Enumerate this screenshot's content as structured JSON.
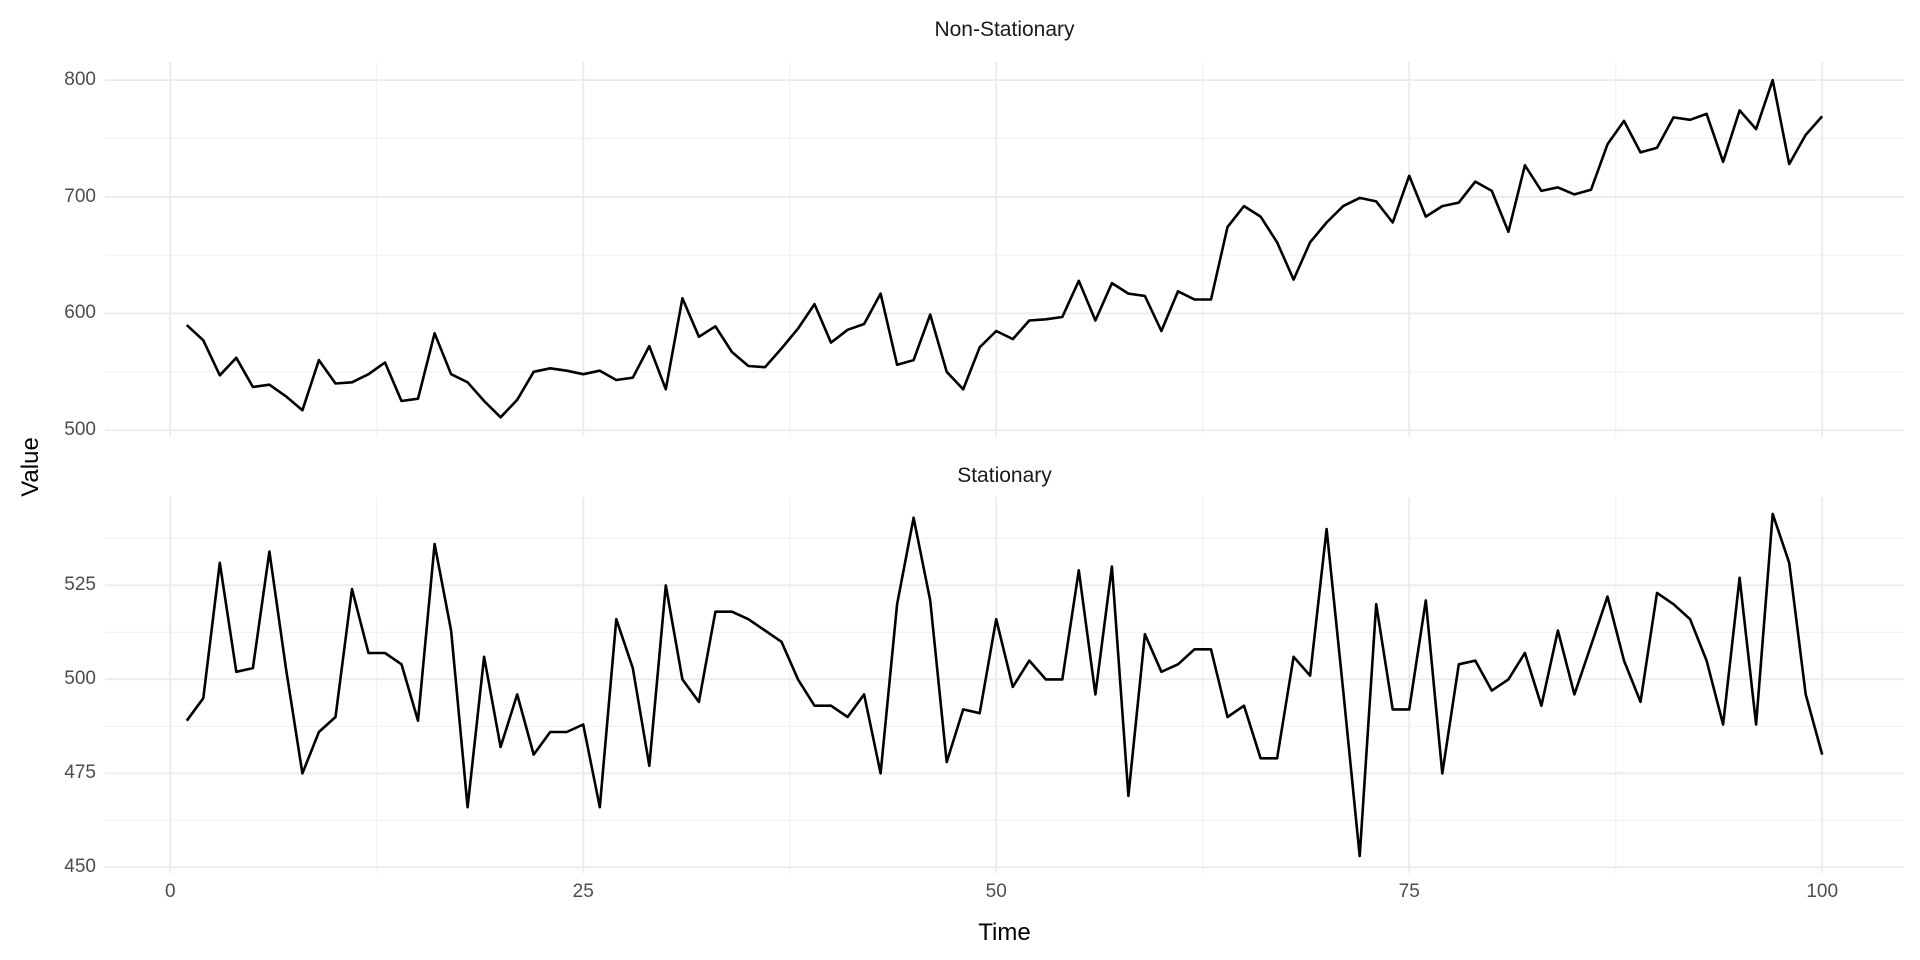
{
  "figure": {
    "y_axis_title": "Value",
    "x_axis_title": "Time",
    "background_color": "#ffffff",
    "line_color": "#000000",
    "grid_major_color": "#ebebeb",
    "grid_minor_color": "#f1f1f1",
    "tick_label_color": "#4d4d4d",
    "facet_title_color": "#1a1a1a"
  },
  "chart_data": [
    {
      "type": "line",
      "title": "Non-Stationary",
      "xlabel": "Time",
      "ylabel": "Value",
      "grid": true,
      "legend": false,
      "x_start": 1,
      "x_step": 1,
      "x_ticks": [
        0,
        25,
        50,
        75,
        100
      ],
      "y_ticks": [
        500,
        600,
        700,
        800
      ],
      "xlim": [
        -3.95,
        104.95
      ],
      "ylim": [
        495,
        815.5
      ],
      "values": [
        590,
        577,
        547,
        562,
        537,
        539,
        529,
        517,
        560,
        540,
        541,
        548,
        558,
        525,
        527,
        583,
        548,
        541,
        525,
        511,
        526,
        550,
        553,
        551,
        548,
        551,
        543,
        545,
        572,
        535,
        613,
        580,
        589,
        567,
        555,
        554,
        570,
        587,
        608,
        575,
        586,
        591,
        617,
        556,
        560,
        599,
        550,
        535,
        571,
        585,
        578,
        594,
        595,
        597,
        628,
        594,
        626,
        617,
        615,
        585,
        619,
        612,
        612,
        674,
        692,
        683,
        661,
        629,
        661,
        678,
        692,
        699,
        696,
        678,
        718,
        683,
        692,
        695,
        713,
        705,
        670,
        727,
        705,
        708,
        702,
        706,
        745,
        765,
        738,
        742,
        768,
        766,
        771,
        730,
        774,
        758,
        800,
        728,
        753,
        769
      ]
    },
    {
      "type": "line",
      "title": "Stationary",
      "xlabel": "Time",
      "ylabel": "Value",
      "grid": true,
      "legend": false,
      "x_start": 1,
      "x_step": 1,
      "x_ticks": [
        0,
        25,
        50,
        75,
        100
      ],
      "y_ticks": [
        450,
        475,
        500,
        525
      ],
      "xlim": [
        -3.95,
        104.95
      ],
      "ylim": [
        448.5,
        548.5
      ],
      "values": [
        489,
        495,
        531,
        502,
        503,
        534,
        503,
        475,
        486,
        490,
        524,
        507,
        507,
        504,
        489,
        536,
        513,
        466,
        506,
        482,
        496,
        480,
        486,
        486,
        488,
        466,
        516,
        503,
        477,
        525,
        500,
        494,
        518,
        518,
        516,
        513,
        510,
        500,
        493,
        493,
        490,
        496,
        475,
        520,
        543,
        521,
        478,
        492,
        491,
        516,
        498,
        505,
        500,
        500,
        529,
        496,
        530,
        469,
        512,
        502,
        504,
        508,
        508,
        490,
        493,
        479,
        479,
        506,
        501,
        540,
        497,
        453,
        520,
        492,
        492,
        521,
        475,
        504,
        505,
        497,
        500,
        507,
        493,
        513,
        496,
        509,
        522,
        505,
        494,
        523,
        520,
        516,
        505,
        488,
        527,
        488,
        544,
        531,
        496,
        480
      ]
    }
  ]
}
